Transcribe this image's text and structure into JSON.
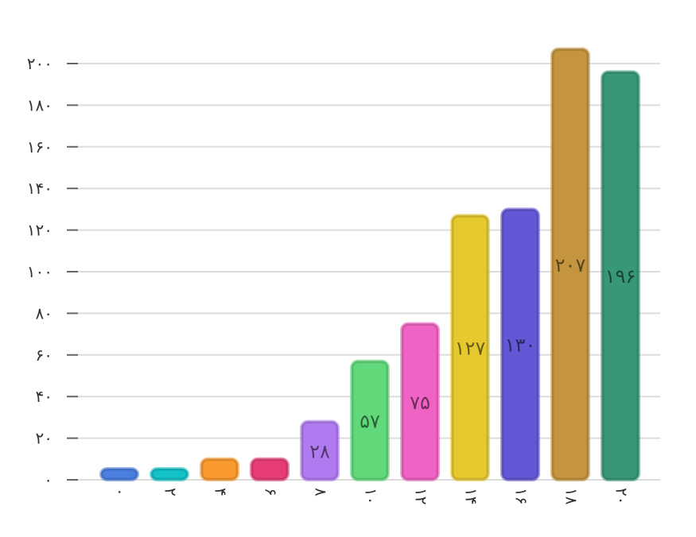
{
  "chart_data": {
    "type": "bar",
    "categories": [
      "۰",
      "۲",
      "۴",
      "۶",
      "۸",
      "۱۰",
      "۱۲",
      "۱۴",
      "۱۶",
      "۱۸",
      "۲۰"
    ],
    "values": [
      4,
      4,
      10,
      10,
      28,
      57,
      75,
      127,
      130,
      207,
      196
    ],
    "data_labels": [
      "",
      "",
      "",
      "",
      "۲۸",
      "۵۷",
      "۷۵",
      "۱۲۷",
      "۱۳۰",
      "۲۰۷",
      "۱۹۶"
    ],
    "colors": [
      "#4A7FE0",
      "#12C2C8",
      "#FA9A2E",
      "#E63C77",
      "#B07BF1",
      "#61D87A",
      "#EE63C3",
      "#E6C92F",
      "#6457D6",
      "#C4943F",
      "#389876"
    ],
    "y_ticks": [
      {
        "value": 0,
        "label": "۰"
      },
      {
        "value": 20,
        "label": "۲۰"
      },
      {
        "value": 40,
        "label": "۴۰"
      },
      {
        "value": 60,
        "label": "۶۰"
      },
      {
        "value": 80,
        "label": "۸۰"
      },
      {
        "value": 100,
        "label": "۱۰۰"
      },
      {
        "value": 120,
        "label": "۱۲۰"
      },
      {
        "value": 140,
        "label": "۱۴۰"
      },
      {
        "value": 160,
        "label": "۱۶۰"
      },
      {
        "value": 180,
        "label": "۱۸۰"
      },
      {
        "value": 200,
        "label": "۲۰۰"
      }
    ],
    "ylim": [
      0,
      200
    ],
    "grid": true,
    "title": "",
    "xlabel": "",
    "ylabel": ""
  }
}
